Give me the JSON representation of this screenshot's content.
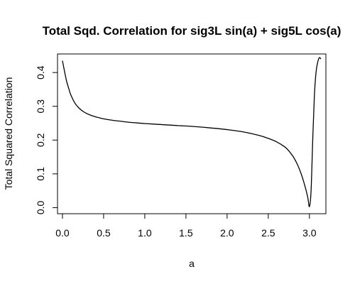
{
  "chart_data": {
    "type": "line",
    "title": "Total Sqd. Correlation for sig3L sin(a) + sig5L cos(a)",
    "xlabel": "a",
    "ylabel": "Total Squared Correlation",
    "xlim": [
      -0.06,
      3.2
    ],
    "ylim": [
      -0.018,
      0.455
    ],
    "x_ticks": [
      0.0,
      0.5,
      1.0,
      1.5,
      2.0,
      2.5,
      3.0
    ],
    "x_tick_labels": [
      "0.0",
      "0.5",
      "1.0",
      "1.5",
      "2.0",
      "2.5",
      "3.0"
    ],
    "y_ticks": [
      0.0,
      0.1,
      0.2,
      0.3,
      0.4
    ],
    "y_tick_labels": [
      "0.0",
      "0.1",
      "0.2",
      "0.3",
      "0.4"
    ],
    "grid": false,
    "series": [
      {
        "x": [
          0.0,
          0.02,
          0.05,
          0.08,
          0.1,
          0.15,
          0.2,
          0.25,
          0.3,
          0.35,
          0.4,
          0.5,
          0.6,
          0.7,
          0.8,
          0.9,
          1.0,
          1.2,
          1.4,
          1.6,
          1.8,
          2.0,
          2.2,
          2.4,
          2.5,
          2.6,
          2.7,
          2.75,
          2.8,
          2.85,
          2.9,
          2.95,
          2.98,
          3.0,
          3.02,
          3.04,
          3.06,
          3.08,
          3.1,
          3.12,
          3.14
        ],
        "y": [
          0.435,
          0.41,
          0.375,
          0.35,
          0.335,
          0.31,
          0.295,
          0.285,
          0.278,
          0.273,
          0.269,
          0.263,
          0.259,
          0.256,
          0.253,
          0.251,
          0.249,
          0.246,
          0.243,
          0.24,
          0.236,
          0.231,
          0.224,
          0.213,
          0.205,
          0.195,
          0.18,
          0.168,
          0.152,
          0.13,
          0.1,
          0.06,
          0.03,
          0.003,
          0.05,
          0.2,
          0.33,
          0.4,
          0.43,
          0.444,
          0.44
        ]
      }
    ]
  }
}
